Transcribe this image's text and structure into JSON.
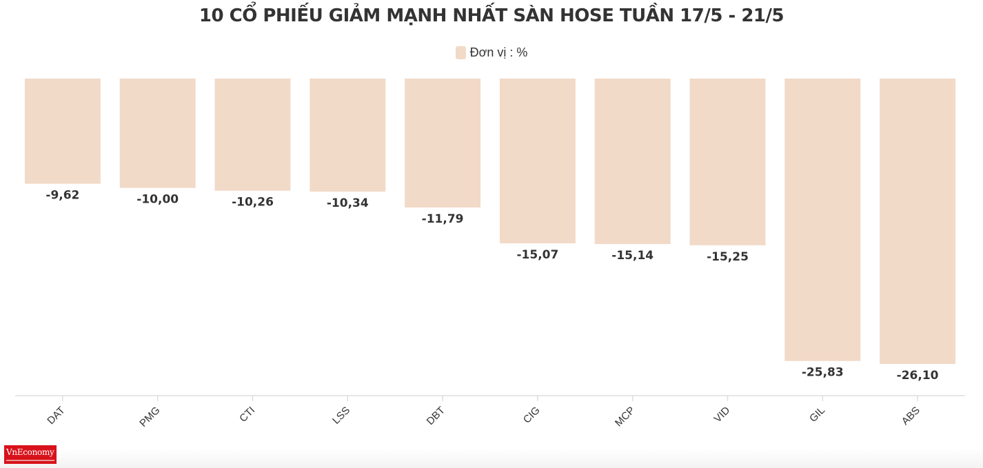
{
  "chart_data": {
    "type": "bar",
    "title": "10 CỔ PHIẾU GIẢM MẠNH NHẤT SÀN HOSE TUẦN 17/5 - 21/5",
    "legend": {
      "label": "Đơn vị : %",
      "placement": "top-center"
    },
    "categories": [
      "DAT",
      "PMG",
      "CTI",
      "LSS",
      "DBT",
      "CIG",
      "MCP",
      "VID",
      "GIL",
      "ABS"
    ],
    "values": [
      -9.62,
      -10.0,
      -10.26,
      -10.34,
      -11.79,
      -15.07,
      -15.14,
      -15.25,
      -25.83,
      -26.1
    ],
    "data_labels": [
      "-9,62",
      "-10,00",
      "-10,26",
      "-10,34",
      "-11,79",
      "-15,07",
      "-15,14",
      "-15,25",
      "-25,83",
      "-26,10"
    ],
    "ylim": [
      -29,
      0
    ],
    "grid": false,
    "bar_color": "#f2dac8",
    "label_color": "#333333",
    "axis_color": "#dddddd"
  },
  "logo": {
    "text": "VnEconomy"
  }
}
